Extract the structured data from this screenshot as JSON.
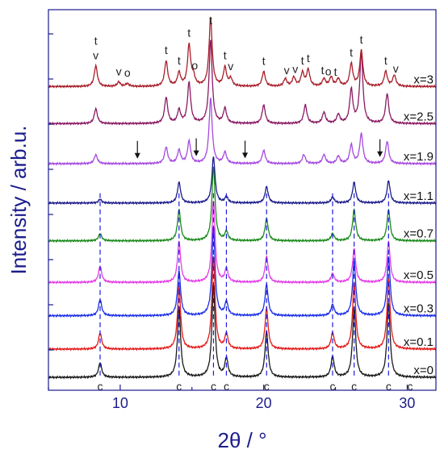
{
  "chart_data": {
    "type": "line",
    "title": "",
    "xlabel": "2θ / °",
    "ylabel": "Intensity / arb.u.",
    "xlim": [
      5,
      32
    ],
    "x_ticks": [
      10,
      20,
      30
    ],
    "y_ticks_labeled": false,
    "grid": false,
    "legend": "none",
    "reference_lines": {
      "style": "dashed",
      "color": "#1a1adc",
      "x": [
        8.6,
        14.1,
        16.5,
        17.4,
        20.2,
        24.8,
        26.3,
        28.7
      ]
    },
    "series": [
      {
        "name": "x=0",
        "color": "#1a1a1a",
        "baseline": 0.0,
        "peaks": [
          [
            8.6,
            0.2
          ],
          [
            14.1,
            0.95
          ],
          [
            16.5,
            1.25
          ],
          [
            17.4,
            0.25
          ],
          [
            20.2,
            0.62
          ],
          [
            24.8,
            0.28
          ],
          [
            26.3,
            0.95
          ],
          [
            28.7,
            1.0
          ]
        ]
      },
      {
        "name": "x=0.1",
        "color": "#e41a1a",
        "baseline": 0.38,
        "peaks": [
          [
            8.6,
            0.22
          ],
          [
            14.1,
            0.85
          ],
          [
            16.5,
            1.25
          ],
          [
            17.4,
            0.2
          ],
          [
            20.2,
            0.55
          ],
          [
            24.8,
            0.22
          ],
          [
            26.3,
            0.9
          ],
          [
            28.7,
            0.95
          ]
        ]
      },
      {
        "name": "x=0.3",
        "color": "#1c2fe8",
        "baseline": 0.83,
        "peaks": [
          [
            8.6,
            0.22
          ],
          [
            14.1,
            0.6
          ],
          [
            16.5,
            1.2
          ],
          [
            17.4,
            0.18
          ],
          [
            20.2,
            0.42
          ],
          [
            24.8,
            0.15
          ],
          [
            26.3,
            0.75
          ],
          [
            28.7,
            0.8
          ]
        ]
      },
      {
        "name": "x=0.5",
        "color": "#e43ce6",
        "baseline": 1.28,
        "peaks": [
          [
            8.6,
            0.22
          ],
          [
            14.1,
            0.55
          ],
          [
            16.5,
            1.1
          ],
          [
            17.4,
            0.18
          ],
          [
            20.2,
            0.35
          ],
          [
            24.8,
            0.12
          ],
          [
            26.3,
            0.45
          ],
          [
            28.7,
            0.55
          ]
        ]
      },
      {
        "name": "x=0.7",
        "color": "#1a8a1a",
        "baseline": 1.84,
        "peaks": [
          [
            8.6,
            0.1
          ],
          [
            14.1,
            0.42
          ],
          [
            16.5,
            1.0
          ],
          [
            17.4,
            0.12
          ],
          [
            20.2,
            0.3
          ],
          [
            24.8,
            0.1
          ],
          [
            26.3,
            0.42
          ],
          [
            28.7,
            0.42
          ]
        ]
      },
      {
        "name": "x=1.1",
        "color": "#1c1c8c",
        "baseline": 2.35,
        "peaks": [
          [
            8.6,
            0.05
          ],
          [
            14.1,
            0.28
          ],
          [
            16.5,
            0.62
          ],
          [
            17.4,
            0.08
          ],
          [
            20.2,
            0.22
          ],
          [
            24.8,
            0.08
          ],
          [
            26.3,
            0.28
          ],
          [
            28.7,
            0.3
          ]
        ]
      },
      {
        "name": "x=1.9",
        "color": "#a64ae0",
        "baseline": 2.88,
        "peaks": [
          [
            8.3,
            0.12
          ],
          [
            13.2,
            0.22
          ],
          [
            14.1,
            0.18
          ],
          [
            14.8,
            0.3
          ],
          [
            16.3,
            0.88
          ],
          [
            17.3,
            0.15
          ],
          [
            20.0,
            0.18
          ],
          [
            22.8,
            0.12
          ],
          [
            24.2,
            0.12
          ],
          [
            25.2,
            0.1
          ],
          [
            26.1,
            0.25
          ],
          [
            26.8,
            0.4
          ],
          [
            28.6,
            0.3
          ]
        ]
      },
      {
        "name": "x=2.5",
        "color": "#8a1a63",
        "baseline": 3.42,
        "peaks": [
          [
            8.3,
            0.2
          ],
          [
            13.2,
            0.35
          ],
          [
            14.1,
            0.18
          ],
          [
            14.8,
            0.55
          ],
          [
            16.3,
            1.12
          ],
          [
            17.3,
            0.2
          ],
          [
            20.0,
            0.25
          ],
          [
            22.9,
            0.25
          ],
          [
            24.2,
            0.15
          ],
          [
            25.2,
            0.12
          ],
          [
            26.1,
            0.45
          ],
          [
            26.8,
            0.95
          ],
          [
            28.6,
            0.4
          ]
        ]
      },
      {
        "name": "x=3",
        "color": "#a81f2a",
        "baseline": 3.92,
        "peaks": [
          [
            8.3,
            0.28
          ],
          [
            9.9,
            0.06
          ],
          [
            10.5,
            0.04
          ],
          [
            13.2,
            0.34
          ],
          [
            14.1,
            0.18
          ],
          [
            14.8,
            0.55
          ],
          [
            15.1,
            0.12
          ],
          [
            16.3,
            0.92
          ],
          [
            17.3,
            0.25
          ],
          [
            17.7,
            0.1
          ],
          [
            20.0,
            0.2
          ],
          [
            21.5,
            0.1
          ],
          [
            22.1,
            0.12
          ],
          [
            22.7,
            0.18
          ],
          [
            23.1,
            0.22
          ],
          [
            24.2,
            0.1
          ],
          [
            24.7,
            0.12
          ],
          [
            25.2,
            0.1
          ],
          [
            26.1,
            0.3
          ],
          [
            26.8,
            0.48
          ],
          [
            28.5,
            0.2
          ],
          [
            29.1,
            0.15
          ]
        ]
      }
    ],
    "annotations": [
      {
        "text": "c",
        "x": 8.6,
        "series": "x=0",
        "pos": "below"
      },
      {
        "text": "c",
        "x": 14.1,
        "series": "x=0",
        "pos": "below"
      },
      {
        "text": "c",
        "x": 16.5,
        "series": "x=0",
        "pos": "below"
      },
      {
        "text": "c",
        "x": 17.4,
        "series": "x=0",
        "pos": "below"
      },
      {
        "text": "c",
        "x": 20.2,
        "series": "x=0",
        "pos": "below"
      },
      {
        "text": "c",
        "x": 24.8,
        "series": "x=0",
        "pos": "below"
      },
      {
        "text": "c",
        "x": 26.3,
        "series": "x=0",
        "pos": "below"
      },
      {
        "text": "c",
        "x": 28.7,
        "series": "x=0",
        "pos": "below"
      },
      {
        "text": "c",
        "x": 30.2,
        "series": "x=0",
        "pos": "below"
      },
      {
        "text": "v",
        "x": 8.3,
        "series": "x=3",
        "pos": "above"
      },
      {
        "text": "t",
        "x": 8.3,
        "series": "x=3",
        "pos": "above"
      },
      {
        "text": "v",
        "x": 9.9,
        "series": "x=3",
        "pos": "above"
      },
      {
        "text": "o",
        "x": 10.5,
        "series": "x=3",
        "pos": "above"
      },
      {
        "text": "t",
        "x": 13.2,
        "series": "x=3",
        "pos": "above"
      },
      {
        "text": "t",
        "x": 14.1,
        "series": "x=3",
        "pos": "above"
      },
      {
        "text": "t",
        "x": 14.8,
        "series": "x=3",
        "pos": "above"
      },
      {
        "text": "o",
        "x": 15.2,
        "series": "x=3",
        "pos": "above"
      },
      {
        "text": "t",
        "x": 16.3,
        "series": "x=3",
        "pos": "above"
      },
      {
        "text": "t",
        "x": 17.3,
        "series": "x=3",
        "pos": "above"
      },
      {
        "text": "v",
        "x": 17.7,
        "series": "x=3",
        "pos": "above"
      },
      {
        "text": "t",
        "x": 20.0,
        "series": "x=3",
        "pos": "above"
      },
      {
        "text": "v",
        "x": 21.6,
        "series": "x=3",
        "pos": "above"
      },
      {
        "text": "v",
        "x": 22.2,
        "series": "x=3",
        "pos": "above"
      },
      {
        "text": "t",
        "x": 22.7,
        "series": "x=3",
        "pos": "above"
      },
      {
        "text": "t",
        "x": 23.1,
        "series": "x=3",
        "pos": "above"
      },
      {
        "text": "t",
        "x": 24.1,
        "series": "x=3",
        "pos": "above"
      },
      {
        "text": "o",
        "x": 24.5,
        "series": "x=3",
        "pos": "above"
      },
      {
        "text": "t",
        "x": 25.0,
        "series": "x=3",
        "pos": "above"
      },
      {
        "text": "t",
        "x": 26.1,
        "series": "x=3",
        "pos": "above"
      },
      {
        "text": "t",
        "x": 26.8,
        "series": "x=3",
        "pos": "above"
      },
      {
        "text": "t",
        "x": 28.5,
        "series": "x=3",
        "pos": "above"
      },
      {
        "text": "v",
        "x": 29.2,
        "series": "x=3",
        "pos": "above"
      }
    ],
    "arrows": [
      {
        "x": 11.2,
        "series": "x=1.9"
      },
      {
        "x": 15.3,
        "series": "x=1.9"
      },
      {
        "x": 18.7,
        "series": "x=1.9"
      },
      {
        "x": 28.1,
        "series": "x=1.9"
      }
    ]
  }
}
